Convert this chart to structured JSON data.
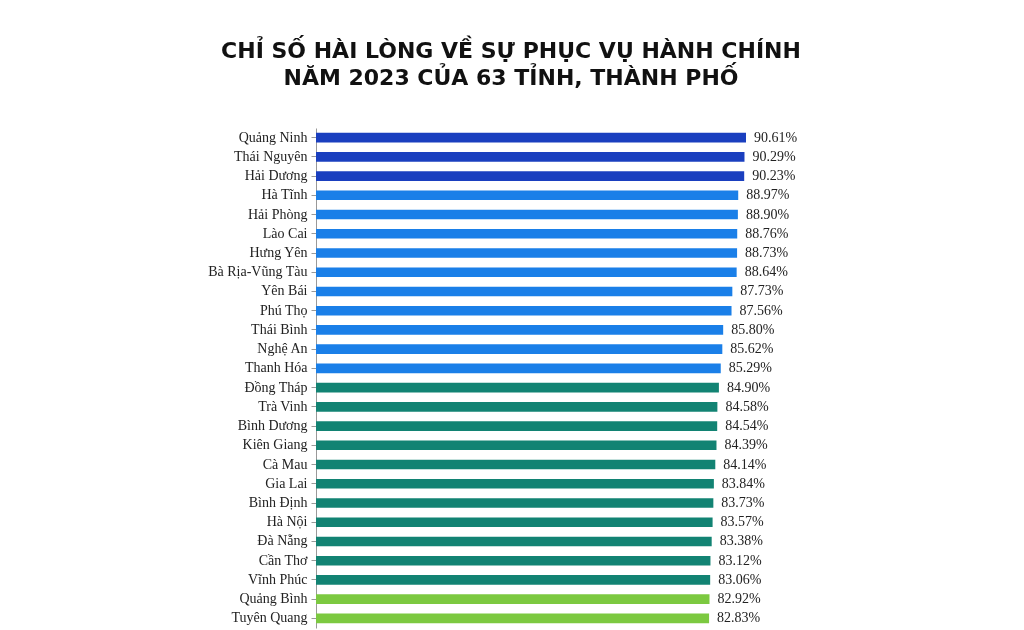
{
  "chart_data": {
    "type": "bar",
    "orientation": "horizontal",
    "title": "CHỈ SỐ HÀI LÒNG VỀ SỰ PHỤC VỤ HÀNH CHÍNH\nNĂM 2023 CỦA 63 TỈNH, THÀNH PHỐ",
    "categories": [
      "Quảng Ninh",
      "Thái Nguyên",
      "Hải Dương",
      "Hà Tĩnh",
      "Hải Phòng",
      "Lào Cai",
      "Hưng Yên",
      "Bà Rịa-Vũng Tàu",
      "Yên Bái",
      "Phú Thọ",
      "Thái Bình",
      "Nghệ An",
      "Thanh Hóa",
      "Đồng Tháp",
      "Trà Vinh",
      "Bình Dương",
      "Kiên Giang",
      "Cà Mau",
      "Gia Lai",
      "Bình Định",
      "Hà Nội",
      "Đà Nẵng",
      "Cần Thơ",
      "Vĩnh Phúc",
      "Quảng Bình",
      "Tuyên Quang"
    ],
    "values": [
      90.61,
      90.29,
      90.23,
      88.97,
      88.9,
      88.76,
      88.73,
      88.64,
      87.73,
      87.56,
      85.8,
      85.62,
      85.29,
      84.9,
      84.58,
      84.54,
      84.39,
      84.14,
      83.84,
      83.73,
      83.57,
      83.38,
      83.12,
      83.06,
      82.92,
      82.83
    ],
    "value_labels": [
      "90.61%",
      "90.29%",
      "90.23%",
      "88.97%",
      "88.90%",
      "88.76%",
      "88.73%",
      "88.64%",
      "87.73%",
      "87.56%",
      "85.80%",
      "85.62%",
      "85.29%",
      "84.90%",
      "84.58%",
      "84.54%",
      "84.39%",
      "84.14%",
      "83.84%",
      "83.73%",
      "83.57%",
      "83.38%",
      "83.12%",
      "83.06%",
      "82.92%",
      "82.83%"
    ],
    "colors": [
      "#1a3fbf",
      "#1a3fbf",
      "#1a3fbf",
      "#1a7fe8",
      "#1a7fe8",
      "#1a7fe8",
      "#1a7fe8",
      "#1a7fe8",
      "#1a7fe8",
      "#1a7fe8",
      "#1a7fe8",
      "#1a7fe8",
      "#1a7fe8",
      "#128373",
      "#128373",
      "#128373",
      "#128373",
      "#128373",
      "#128373",
      "#128373",
      "#128373",
      "#128373",
      "#128373",
      "#128373",
      "#7cc940",
      "#7cc940"
    ]
  }
}
